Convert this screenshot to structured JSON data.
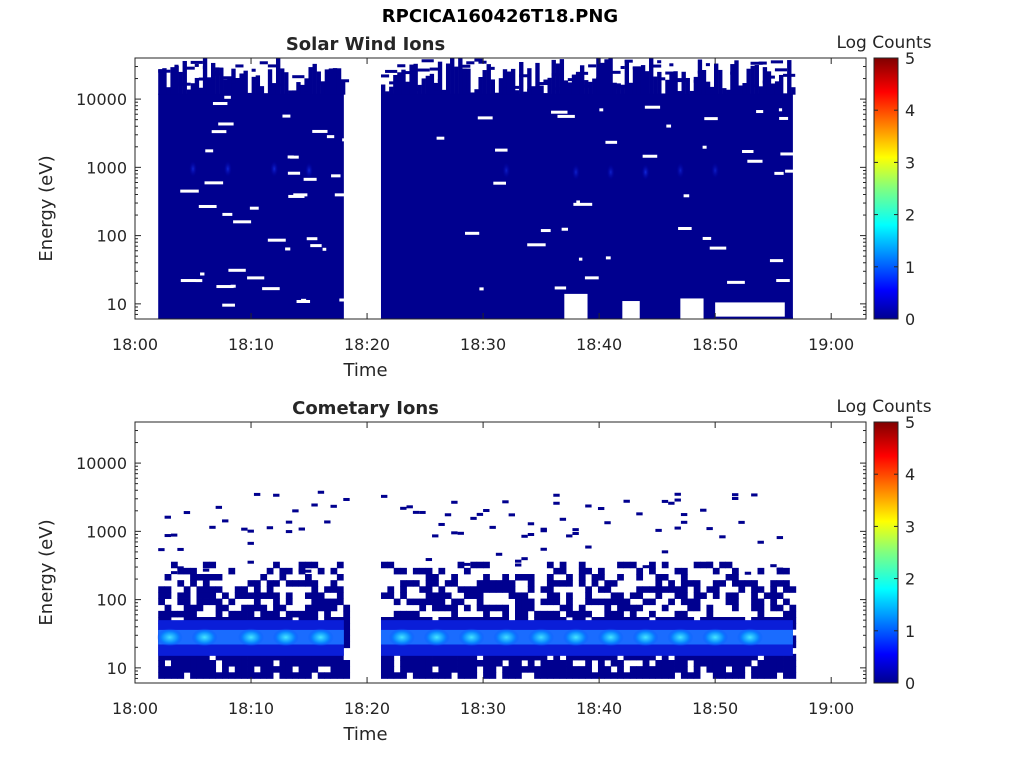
{
  "figure_title": "RPCICA160426T18.PNG",
  "colorbar": {
    "label": "Log Counts",
    "ticks": [
      "0",
      "1",
      "2",
      "3",
      "4",
      "5"
    ],
    "range": [
      0,
      5
    ],
    "colormap": "jet"
  },
  "chart_data": [
    {
      "type": "heatmap",
      "title": "Solar Wind Ions",
      "xlabel": "Time",
      "ylabel": "Energy (eV)",
      "x_ticks": [
        "18:00",
        "18:10",
        "18:20",
        "18:30",
        "18:40",
        "18:50",
        "19:00"
      ],
      "xlim": [
        "18:00",
        "19:03"
      ],
      "y_scale": "log",
      "y_ticks": [
        "10",
        "100",
        "1000",
        "10000"
      ],
      "ylim": [
        6,
        40000
      ],
      "data_gaps": [
        [
          "18:18",
          "18:21"
        ]
      ],
      "data_range": [
        "18:02",
        "18:56"
      ],
      "background_level": 0,
      "enhancements": [
        {
          "time": "18:05",
          "energy": 950,
          "level": 0.5
        },
        {
          "time": "18:08",
          "energy": 950,
          "level": 0.6
        },
        {
          "time": "18:12",
          "energy": 950,
          "level": 0.6
        },
        {
          "time": "18:15",
          "energy": 900,
          "level": 0.6
        },
        {
          "time": "18:32",
          "energy": 900,
          "level": 0.3
        },
        {
          "time": "18:38",
          "energy": 850,
          "level": 0.4
        },
        {
          "time": "18:41",
          "energy": 850,
          "level": 0.4
        },
        {
          "time": "18:44",
          "energy": 850,
          "level": 0.7
        },
        {
          "time": "18:47",
          "energy": 900,
          "level": 0.3
        },
        {
          "time": "18:50",
          "energy": 900,
          "level": 0.3
        }
      ]
    },
    {
      "type": "heatmap",
      "title": "Cometary Ions",
      "xlabel": "Time",
      "ylabel": "Energy (eV)",
      "x_ticks": [
        "18:00",
        "18:10",
        "18:20",
        "18:30",
        "18:40",
        "18:50",
        "19:00"
      ],
      "xlim": [
        "18:00",
        "19:03"
      ],
      "y_scale": "log",
      "y_ticks": [
        "10",
        "100",
        "1000",
        "10000"
      ],
      "ylim": [
        6,
        40000
      ],
      "data_gaps": [
        [
          "18:18",
          "18:21"
        ]
      ],
      "data_range": [
        "18:02",
        "18:56"
      ],
      "band": {
        "energy_range": [
          15,
          50
        ],
        "peak_energy": 28,
        "peak_level": 1.7
      },
      "enhancements": [
        {
          "time": "18:03",
          "energy": 28,
          "level": 1.3
        },
        {
          "time": "18:06",
          "energy": 28,
          "level": 1.5
        },
        {
          "time": "18:10",
          "energy": 28,
          "level": 1.7
        },
        {
          "time": "18:13",
          "energy": 28,
          "level": 1.7
        },
        {
          "time": "18:16",
          "energy": 28,
          "level": 1.6
        },
        {
          "time": "18:23",
          "energy": 28,
          "level": 1.4
        },
        {
          "time": "18:26",
          "energy": 28,
          "level": 1.6
        },
        {
          "time": "18:29",
          "energy": 28,
          "level": 1.4
        },
        {
          "time": "18:32",
          "energy": 28,
          "level": 1.3
        },
        {
          "time": "18:35",
          "energy": 28,
          "level": 1.3
        },
        {
          "time": "18:38",
          "energy": 28,
          "level": 1.5
        },
        {
          "time": "18:41",
          "energy": 28,
          "level": 1.5
        },
        {
          "time": "18:44",
          "energy": 28,
          "level": 1.6
        },
        {
          "time": "18:47",
          "energy": 28,
          "level": 1.5
        },
        {
          "time": "18:50",
          "energy": 28,
          "level": 1.6
        },
        {
          "time": "18:53",
          "energy": 28,
          "level": 1.5
        }
      ]
    }
  ]
}
